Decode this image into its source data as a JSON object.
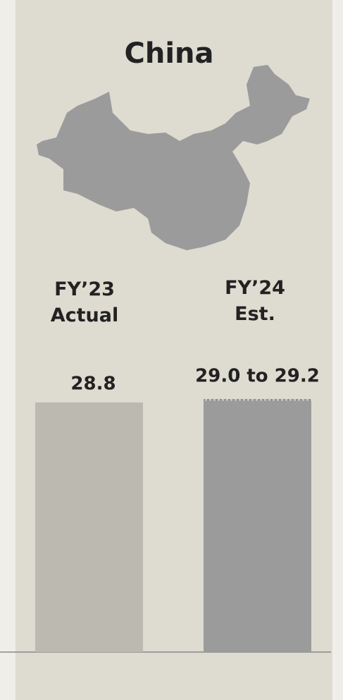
{
  "chart_data": {
    "type": "bar",
    "title": "China",
    "categories": [
      "FY’23 Actual",
      "FY’24 Est."
    ],
    "values": [
      28.8,
      29.0
    ],
    "range_high": [
      null,
      29.2
    ],
    "value_labels": [
      "28.8",
      "29.0 to 29.2"
    ],
    "colors": [
      "#bcb9b1",
      "#9b9b9b"
    ]
  }
}
